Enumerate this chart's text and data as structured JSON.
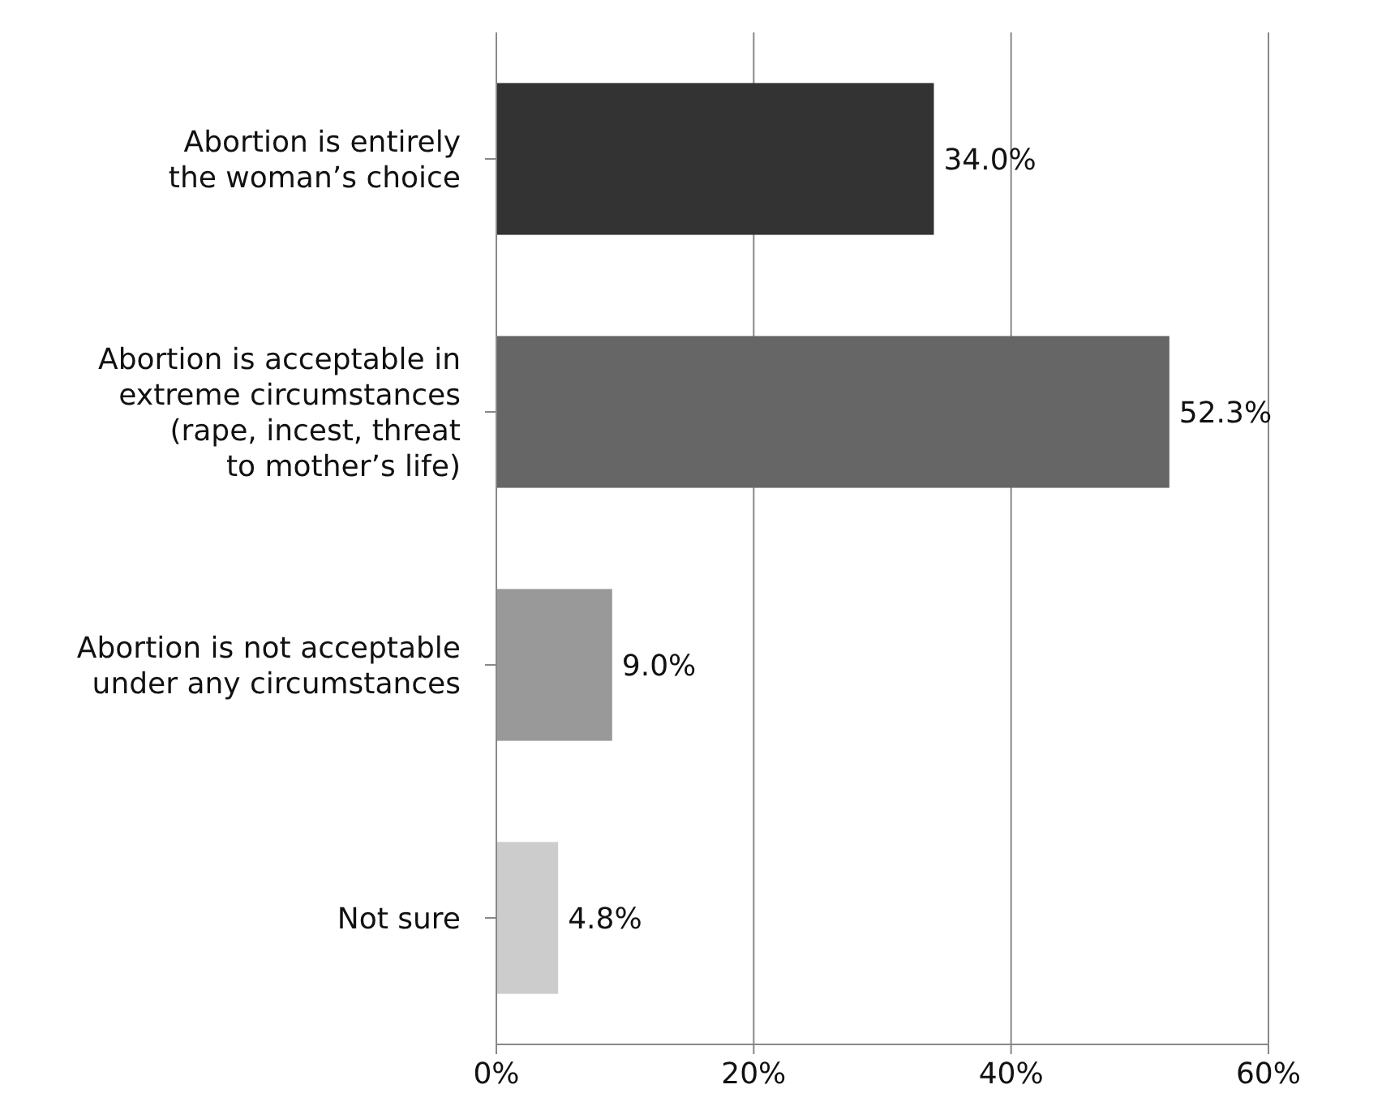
{
  "chart_data": {
    "type": "bar",
    "orientation": "horizontal",
    "categories": [
      "Abortion is entirely\nthe woman’s choice",
      "Abortion is acceptable in\nextreme circumstances\n(rape, incest, threat\nto mother’s life)",
      "Abortion is not acceptable\nunder any circumstances",
      "Not sure"
    ],
    "values": [
      34.0,
      52.3,
      9.0,
      4.8
    ],
    "colors": [
      "#333333",
      "#666666",
      "#999999",
      "#cccccc"
    ],
    "value_labels": [
      "34.0%",
      "52.3%",
      "9.0%",
      "4.8%"
    ],
    "xlim": [
      0,
      60
    ],
    "xticks": [
      {
        "value": 0,
        "label": "0%"
      },
      {
        "value": 20,
        "label": "20%"
      },
      {
        "value": 40,
        "label": "40%"
      },
      {
        "value": 60,
        "label": "60%"
      }
    ],
    "grid": "x"
  }
}
